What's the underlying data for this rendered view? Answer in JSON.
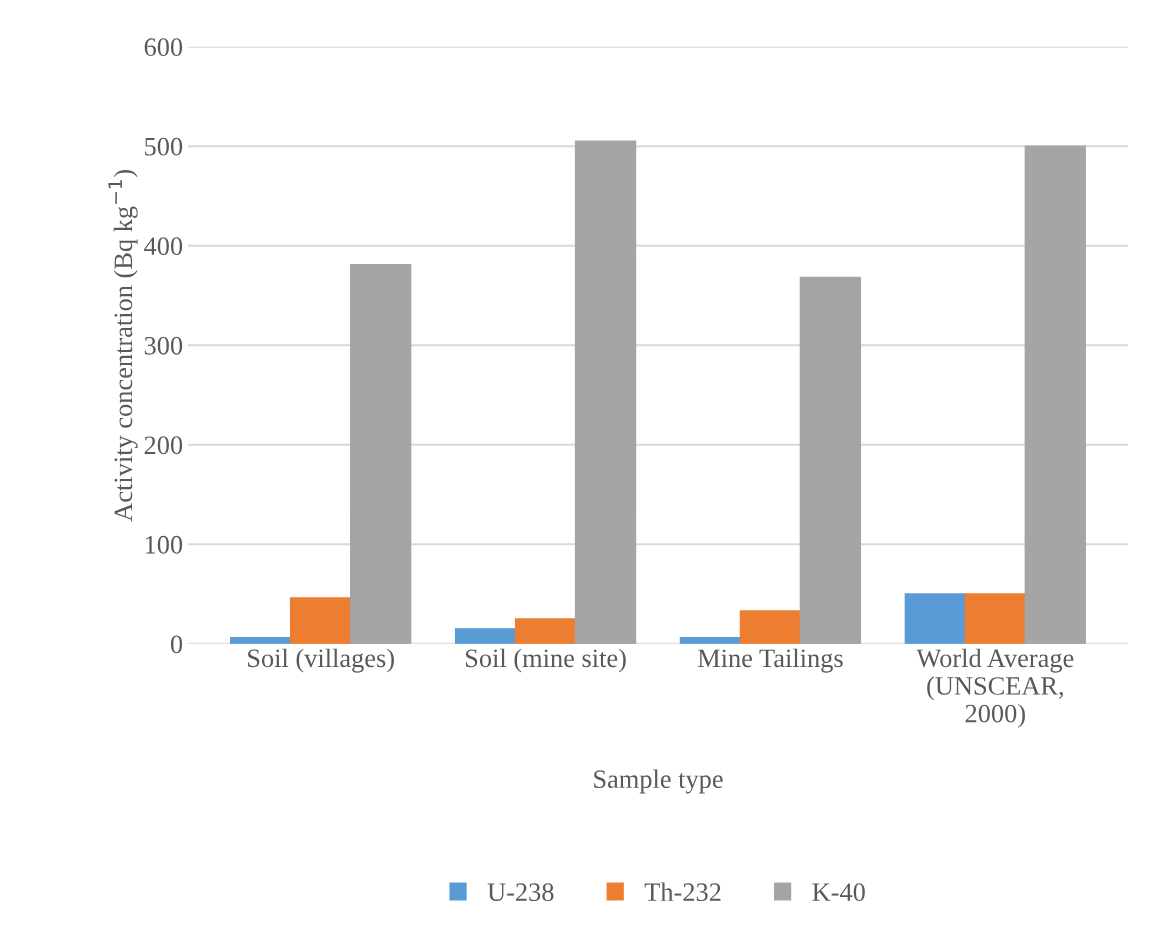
{
  "chart_data": {
    "type": "bar",
    "xlabel": "Sample type",
    "ylabel": "Activity concentration (Bq kg$^{−1}$)",
    "categories": [
      "Soil (villages)",
      "Soil (mine site)",
      "Mine Tailings",
      "World Average\n(UNSCEAR,\n2000)"
    ],
    "series": [
      {
        "name": "U-238",
        "color": "#5b9bd5",
        "values": [
          6,
          15,
          6,
          50
        ]
      },
      {
        "name": "Th-232",
        "color": "#ed7d31",
        "values": [
          46,
          25,
          33,
          50
        ]
      },
      {
        "name": "K-40",
        "color": "#a5a5a5",
        "values": [
          381,
          505,
          368,
          500
        ]
      }
    ],
    "ylim": [
      0,
      600
    ],
    "yticks": [
      0,
      100,
      200,
      300,
      400,
      500,
      600
    ],
    "grid": "y",
    "legend": "bottom"
  }
}
